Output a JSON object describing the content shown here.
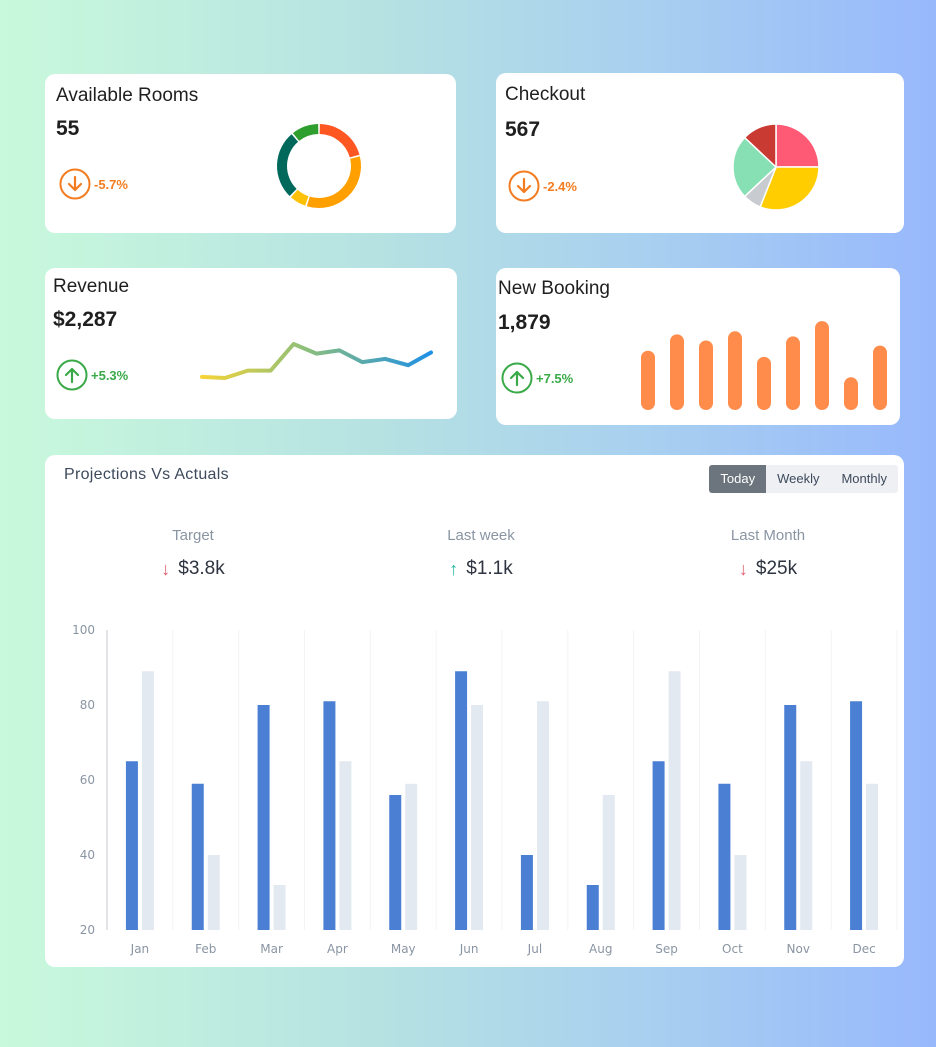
{
  "cards": {
    "available_rooms": {
      "title": "Available Rooms",
      "value": "55",
      "change": "-5.7%",
      "direction": "down",
      "donut": {
        "segments": [
          {
            "value": 21,
            "color": "#ff5722"
          },
          {
            "value": 34,
            "color": "#ffa000"
          },
          {
            "value": 7,
            "color": "#ffc107"
          },
          {
            "value": 27,
            "color": "#00695c"
          },
          {
            "value": 11,
            "color": "#2e9e2e"
          }
        ]
      }
    },
    "checkout": {
      "title": "Checkout",
      "value": "567",
      "change": "-2.4%",
      "direction": "down",
      "pie": {
        "slices": [
          {
            "value": 25,
            "color": "#ff5a75"
          },
          {
            "value": 31,
            "color": "#ffcd00"
          },
          {
            "value": 7,
            "color": "#c8ccd0"
          },
          {
            "value": 24,
            "color": "#86e0b4"
          },
          {
            "value": 13,
            "color": "#c93a32"
          }
        ]
      }
    },
    "revenue": {
      "title": "Revenue",
      "value": "$2,287",
      "change": "+5.3%",
      "direction": "up",
      "sparkline": [
        2,
        1.8,
        3.2,
        3.2,
        8.2,
        6.4,
        7,
        4.8,
        5.4,
        4.2,
        6.6
      ]
    },
    "new_booking": {
      "title": "New Booking",
      "value": "1,879",
      "change": "+7.5%",
      "direction": "up",
      "bars": [
        58,
        74,
        68,
        77,
        52,
        72,
        87,
        32,
        63
      ],
      "bar_color": "#ff8c4a"
    }
  },
  "projections": {
    "title": "Projections Vs Actuals",
    "tabs": [
      {
        "label": "Today",
        "active": true
      },
      {
        "label": "Weekly",
        "active": false
      },
      {
        "label": "Monthly",
        "active": false
      }
    ],
    "metrics": [
      {
        "label": "Target",
        "value": "$3.8k",
        "direction": "down"
      },
      {
        "label": "Last week",
        "value": "$1.1k",
        "direction": "up"
      },
      {
        "label": "Last Month",
        "value": "$25k",
        "direction": "down"
      }
    ],
    "chart_data": {
      "type": "bar",
      "categories": [
        "Jan",
        "Feb",
        "Mar",
        "Apr",
        "May",
        "Jun",
        "Jul",
        "Aug",
        "Sep",
        "Oct",
        "Nov",
        "Dec"
      ],
      "series": [
        {
          "values": [
            65,
            59,
            80,
            81,
            56,
            89,
            40,
            32,
            65,
            59,
            80,
            81
          ],
          "color": "#4a7fd4"
        },
        {
          "values": [
            89,
            40,
            32,
            65,
            59,
            80,
            81,
            56,
            89,
            40,
            65,
            59
          ],
          "color": "#e3e9f0"
        }
      ],
      "yticks": [
        20,
        40,
        60,
        80,
        100
      ],
      "ylim": [
        20,
        100
      ],
      "grid": "vertical"
    }
  }
}
